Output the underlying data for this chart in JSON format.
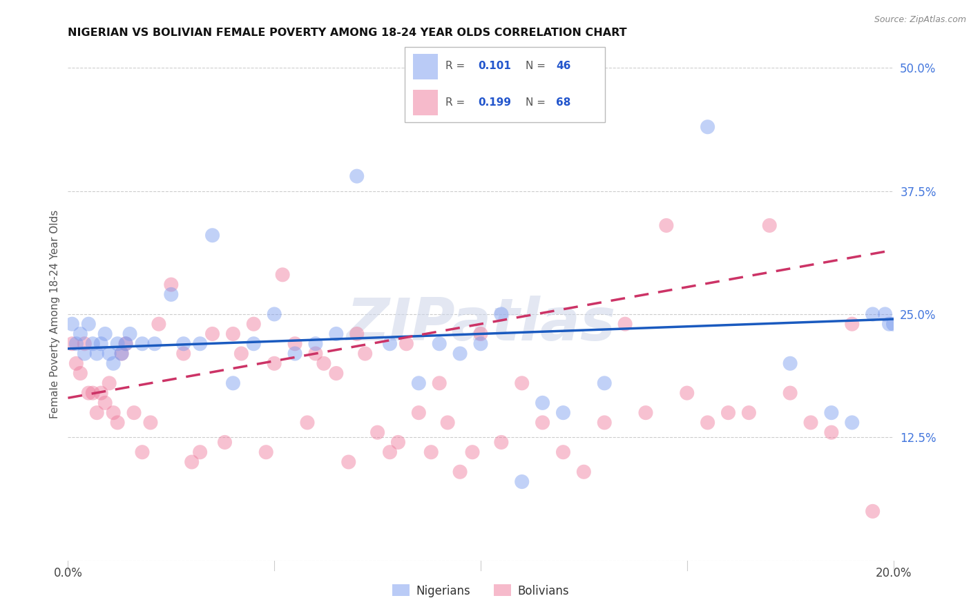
{
  "title": "NIGERIAN VS BOLIVIAN FEMALE POVERTY AMONG 18-24 YEAR OLDS CORRELATION CHART",
  "source": "Source: ZipAtlas.com",
  "ylabel": "Female Poverty Among 18-24 Year Olds",
  "xlim": [
    0.0,
    0.2
  ],
  "ylim": [
    0.0,
    0.5
  ],
  "xticks": [
    0.0,
    0.05,
    0.1,
    0.15,
    0.2
  ],
  "xticklabels": [
    "0.0%",
    "",
    "",
    "",
    "20.0%"
  ],
  "yticks": [
    0.0,
    0.125,
    0.25,
    0.375,
    0.5
  ],
  "yticklabels": [
    "",
    "12.5%",
    "25.0%",
    "37.5%",
    "50.0%"
  ],
  "bg_color": "#ffffff",
  "grid_color": "#cccccc",
  "watermark": "ZIPatlas",
  "nigerian_color": "#7799ee",
  "bolivian_color": "#ee7799",
  "nigerian_R": "0.101",
  "nigerian_N": "46",
  "bolivian_R": "0.199",
  "bolivian_N": "68",
  "legend_label_nigerian": "Nigerians",
  "legend_label_bolivian": "Bolivians",
  "trendline_blue_color": "#1a5abf",
  "trendline_pink_color": "#cc3366",
  "nig_trend_x0": 0.0,
  "nig_trend_y0": 0.215,
  "nig_trend_x1": 0.2,
  "nig_trend_y1": 0.245,
  "bol_trend_x0": 0.0,
  "bol_trend_y0": 0.165,
  "bol_trend_x1": 0.2,
  "bol_trend_y1": 0.315,
  "nigerian_x": [
    0.001,
    0.002,
    0.003,
    0.004,
    0.005,
    0.006,
    0.007,
    0.008,
    0.009,
    0.01,
    0.011,
    0.012,
    0.013,
    0.014,
    0.015,
    0.018,
    0.021,
    0.025,
    0.028,
    0.032,
    0.035,
    0.04,
    0.045,
    0.05,
    0.055,
    0.06,
    0.065,
    0.07,
    0.078,
    0.085,
    0.09,
    0.095,
    0.1,
    0.105,
    0.11,
    0.115,
    0.12,
    0.13,
    0.155,
    0.175,
    0.185,
    0.19,
    0.195,
    0.198,
    0.199,
    0.2
  ],
  "nigerian_y": [
    0.24,
    0.22,
    0.23,
    0.21,
    0.24,
    0.22,
    0.21,
    0.22,
    0.23,
    0.21,
    0.2,
    0.22,
    0.21,
    0.22,
    0.23,
    0.22,
    0.22,
    0.27,
    0.22,
    0.22,
    0.33,
    0.18,
    0.22,
    0.25,
    0.21,
    0.22,
    0.23,
    0.39,
    0.22,
    0.18,
    0.22,
    0.21,
    0.22,
    0.25,
    0.08,
    0.16,
    0.15,
    0.18,
    0.44,
    0.2,
    0.15,
    0.14,
    0.25,
    0.25,
    0.24,
    0.24
  ],
  "bolivian_x": [
    0.001,
    0.002,
    0.003,
    0.004,
    0.005,
    0.006,
    0.007,
    0.008,
    0.009,
    0.01,
    0.011,
    0.012,
    0.013,
    0.014,
    0.016,
    0.018,
    0.02,
    0.022,
    0.025,
    0.028,
    0.03,
    0.032,
    0.035,
    0.038,
    0.04,
    0.042,
    0.045,
    0.048,
    0.05,
    0.052,
    0.055,
    0.058,
    0.06,
    0.062,
    0.065,
    0.068,
    0.07,
    0.072,
    0.075,
    0.078,
    0.08,
    0.082,
    0.085,
    0.088,
    0.09,
    0.092,
    0.095,
    0.098,
    0.1,
    0.105,
    0.11,
    0.115,
    0.12,
    0.125,
    0.13,
    0.135,
    0.14,
    0.145,
    0.15,
    0.155,
    0.16,
    0.165,
    0.17,
    0.175,
    0.18,
    0.185,
    0.19,
    0.195
  ],
  "bolivian_y": [
    0.22,
    0.2,
    0.19,
    0.22,
    0.17,
    0.17,
    0.15,
    0.17,
    0.16,
    0.18,
    0.15,
    0.14,
    0.21,
    0.22,
    0.15,
    0.11,
    0.14,
    0.24,
    0.28,
    0.21,
    0.1,
    0.11,
    0.23,
    0.12,
    0.23,
    0.21,
    0.24,
    0.11,
    0.2,
    0.29,
    0.22,
    0.14,
    0.21,
    0.2,
    0.19,
    0.1,
    0.23,
    0.21,
    0.13,
    0.11,
    0.12,
    0.22,
    0.15,
    0.11,
    0.18,
    0.14,
    0.09,
    0.11,
    0.23,
    0.12,
    0.18,
    0.14,
    0.11,
    0.09,
    0.14,
    0.24,
    0.15,
    0.34,
    0.17,
    0.14,
    0.15,
    0.15,
    0.34,
    0.17,
    0.14,
    0.13,
    0.24,
    0.05
  ]
}
